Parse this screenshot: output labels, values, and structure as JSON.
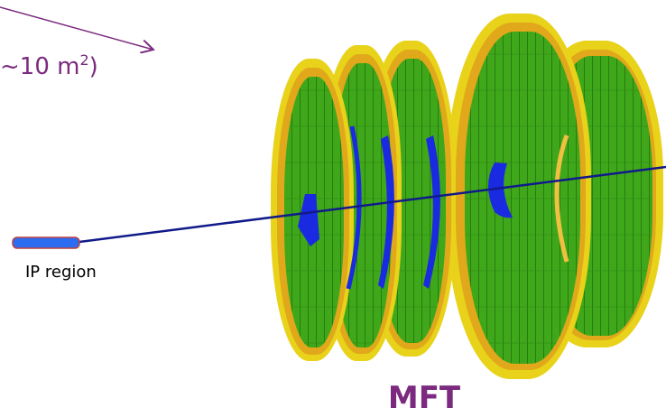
{
  "area_label": {
    "text": "~10 m",
    "sup": "2",
    "close": ")"
  },
  "ip_label": "IP region",
  "detector_label": "MFT"
}
